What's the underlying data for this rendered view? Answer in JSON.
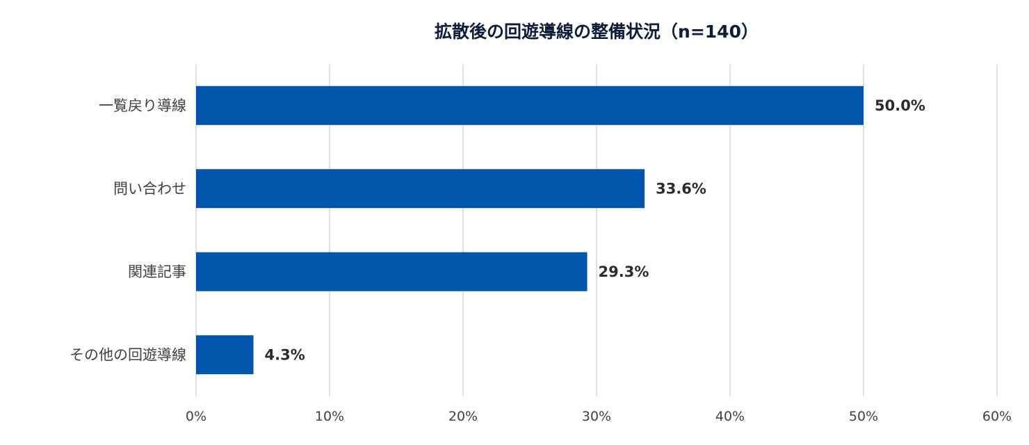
{
  "title": "拡散後の回遊導線の整備状況（n=140）",
  "colors": {
    "bar": "#0255ad",
    "grid": "#d9d9d9",
    "title": "#0b1d3a",
    "text": "#404040"
  },
  "chart_data": {
    "type": "bar",
    "orientation": "horizontal",
    "title": "拡散後の回遊導線の整備状況（n=140）",
    "xlabel": "",
    "ylabel": "",
    "categories": [
      "一覧戻り導線",
      "問い合わせ",
      "関連記事",
      "その他の回遊導線"
    ],
    "values": [
      50.0,
      33.6,
      29.3,
      4.3
    ],
    "data_labels": [
      "50.0%",
      "33.6%",
      "29.3%",
      "4.3%"
    ],
    "xlim": [
      0,
      60
    ],
    "x_ticks": [
      0,
      10,
      20,
      30,
      40,
      50,
      60
    ],
    "x_tick_labels": [
      "0%",
      "10%",
      "20%",
      "30%",
      "40%",
      "50%",
      "60%"
    ],
    "grid": true,
    "legend": "none"
  }
}
